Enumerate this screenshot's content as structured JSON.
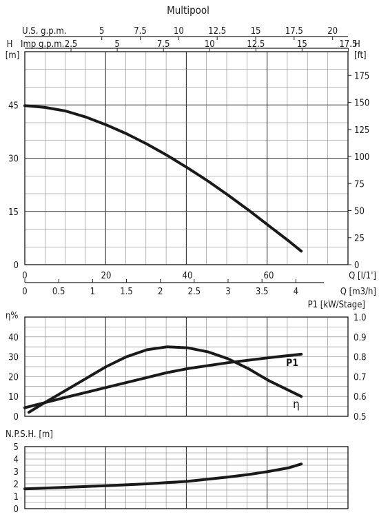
{
  "chart_data": [
    {
      "type": "line",
      "title": "Multipool",
      "xlabel": "Q [l/1']",
      "x2label": "Q [m3/h]",
      "top_axis_us": "U.S. g.p.m.",
      "top_axis_imp": "Imp g.p.m.",
      "ylabel": "H [m]",
      "y2label": "H [ft]",
      "left_y_header": "H",
      "left_y_unit": "[m]",
      "right_y_header": "H",
      "right_y_unit": "[ft]",
      "xlim": [
        0,
        70
      ],
      "ylim": [
        0,
        60
      ],
      "y2lim": [
        0,
        196.85
      ],
      "x_ticks": [
        "0",
        "20",
        "40",
        "60"
      ],
      "x_tick_values": [
        0,
        20,
        40,
        60
      ],
      "x2_ticks": [
        "0",
        "0.5",
        "1",
        "1.5",
        "2",
        "2.5",
        "3",
        "3.5",
        "4"
      ],
      "x2_tick_values": [
        0,
        0.5,
        1,
        1.5,
        2,
        2.5,
        3,
        3.5,
        4
      ],
      "us_gpm_ticks": [
        "5",
        "7.5",
        "10",
        "12.5",
        "15",
        "17.5",
        "20"
      ],
      "us_gpm_values": [
        5,
        7.5,
        10,
        12.5,
        15,
        17.5,
        20
      ],
      "imp_gpm_ticks": [
        "2.5",
        "5",
        "7.5",
        "10",
        "12.5",
        "15",
        "17.5"
      ],
      "imp_gpm_values": [
        2.5,
        5,
        7.5,
        10,
        12.5,
        15,
        17.5
      ],
      "y_ticks": [
        "0",
        "15",
        "30",
        "45"
      ],
      "y_tick_values": [
        0,
        15,
        30,
        45
      ],
      "y2_ticks": [
        "0",
        "25",
        "50",
        "75",
        "100",
        "125",
        "150",
        "175"
      ],
      "y2_tick_values": [
        0,
        25,
        50,
        75,
        100,
        125,
        150,
        175
      ],
      "grid": true,
      "series": [
        {
          "x": [
            0,
            5,
            10,
            15,
            20,
            25,
            30,
            35,
            40,
            45,
            50,
            55,
            60,
            65,
            68
          ],
          "y": [
            44.8,
            44.3,
            43.3,
            41.6,
            39.4,
            36.9,
            34.0,
            30.8,
            27.3,
            23.6,
            19.6,
            15.4,
            11.0,
            6.6,
            3.8
          ]
        }
      ]
    },
    {
      "type": "line",
      "ylabel": "η%",
      "y2label": "P1 [kW/Stage]",
      "xlim": [
        0,
        70
      ],
      "ylim": [
        0,
        50
      ],
      "y2lim": [
        0.5,
        1.0
      ],
      "y_ticks": [
        "0",
        "10",
        "20",
        "30",
        "40"
      ],
      "y_tick_values": [
        0,
        10,
        20,
        30,
        40
      ],
      "y2_ticks": [
        "0.5",
        "0.6",
        "0.7",
        "0.8",
        "0.9",
        "1.0"
      ],
      "y2_tick_values": [
        0.5,
        0.6,
        0.7,
        0.8,
        0.9,
        1.0
      ],
      "grid": true,
      "series": [
        {
          "name": "η",
          "axis": "left",
          "x": [
            1,
            5,
            10,
            15,
            20,
            25,
            30,
            35,
            40,
            45,
            50,
            55,
            60,
            65,
            68
          ],
          "y": [
            2,
            7,
            13,
            19,
            25,
            30,
            33.5,
            35,
            34.5,
            32.5,
            29,
            24,
            18,
            13,
            10
          ]
        },
        {
          "name": "P1",
          "axis": "right",
          "x": [
            0,
            10,
            20,
            30,
            35,
            40,
            50,
            60,
            68
          ],
          "y": [
            0.543,
            0.595,
            0.645,
            0.695,
            0.72,
            0.74,
            0.77,
            0.795,
            0.813
          ]
        }
      ]
    },
    {
      "type": "line",
      "ylabel": "N.P.S.H. [m]",
      "xlim": [
        0,
        70
      ],
      "ylim": [
        0,
        5
      ],
      "y_ticks": [
        "0",
        "1",
        "2",
        "3",
        "4",
        "5"
      ],
      "y_tick_values": [
        0,
        1,
        2,
        3,
        4,
        5
      ],
      "grid": true,
      "series": [
        {
          "x": [
            0,
            10,
            20,
            30,
            40,
            50,
            55,
            60,
            65,
            68
          ],
          "y": [
            1.6,
            1.72,
            1.85,
            2.0,
            2.2,
            2.55,
            2.75,
            3.0,
            3.3,
            3.6
          ]
        }
      ]
    }
  ]
}
